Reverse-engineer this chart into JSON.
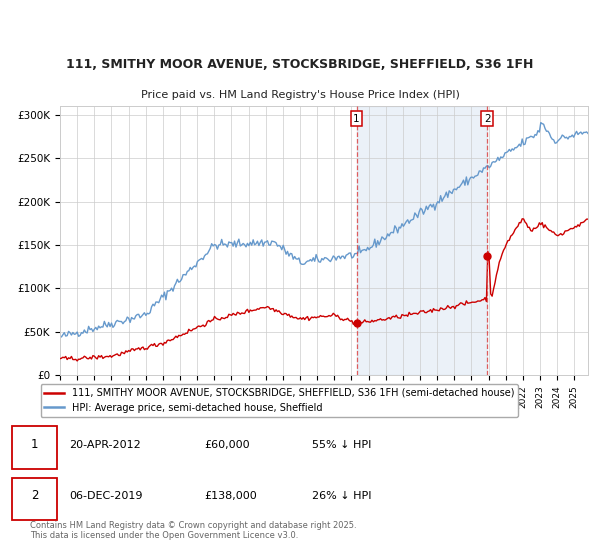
{
  "title1": "111, SMITHY MOOR AVENUE, STOCKSBRIDGE, SHEFFIELD, S36 1FH",
  "title2": "Price paid vs. HM Land Registry's House Price Index (HPI)",
  "legend_line1": "111, SMITHY MOOR AVENUE, STOCKSBRIDGE, SHEFFIELD, S36 1FH (semi-detached house)",
  "legend_line2": "HPI: Average price, semi-detached house, Sheffield",
  "annotation1_date": "20-APR-2012",
  "annotation1_price": "£60,000",
  "annotation1_hpi": "55% ↓ HPI",
  "annotation2_date": "06-DEC-2019",
  "annotation2_price": "£138,000",
  "annotation2_hpi": "26% ↓ HPI",
  "footer": "Contains HM Land Registry data © Crown copyright and database right 2025.\nThis data is licensed under the Open Government Licence v3.0.",
  "red_color": "#cc0000",
  "blue_color": "#6699cc",
  "background_color": "#ffffff",
  "grid_color": "#cccccc",
  "vline_color": "#dd4444",
  "sale1_year": 2012.3,
  "sale1_price": 60000,
  "sale2_year": 2019.92,
  "sale2_price": 138000,
  "ylim": [
    0,
    310000
  ],
  "xlim_start": 1995,
  "xlim_end": 2025.8
}
